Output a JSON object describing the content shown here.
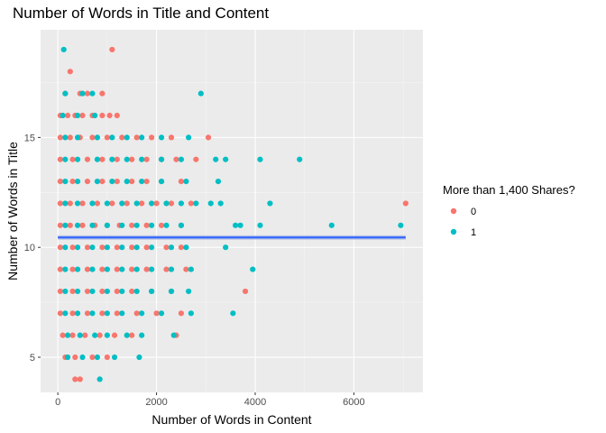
{
  "chart_data": {
    "type": "scatter",
    "title": "Number of Words in Title and Content",
    "xlabel": "Number of Words in Content",
    "ylabel": "Number of Words in Title",
    "xlim": [
      -350,
      7400
    ],
    "ylim": [
      3.4,
      19.9
    ],
    "x_ticks": [
      0,
      2000,
      4000,
      6000
    ],
    "y_ticks": [
      5,
      10,
      15
    ],
    "grid": true,
    "legend": {
      "title": "More than 1,400 Shares?",
      "placement": "right",
      "entries": [
        {
          "label": "0",
          "color": "#F8766D"
        },
        {
          "label": "1",
          "color": "#00BFC4"
        }
      ]
    },
    "trend_line": {
      "color": "#3366FF",
      "x": [
        0,
        7050
      ],
      "y": [
        10.45,
        10.45
      ]
    },
    "series": [
      {
        "name": "0",
        "color": "#F8766D",
        "points": [
          [
            250,
            18
          ],
          [
            1100,
            19
          ],
          [
            150,
            17
          ],
          [
            450,
            17
          ],
          [
            600,
            17
          ],
          [
            900,
            17
          ],
          [
            50,
            16
          ],
          [
            200,
            16
          ],
          [
            350,
            16
          ],
          [
            500,
            16
          ],
          [
            700,
            16
          ],
          [
            900,
            16
          ],
          [
            1050,
            16
          ],
          [
            1200,
            16
          ],
          [
            50,
            15
          ],
          [
            250,
            15
          ],
          [
            450,
            15
          ],
          [
            700,
            15
          ],
          [
            1000,
            15
          ],
          [
            1300,
            15
          ],
          [
            1600,
            15
          ],
          [
            1900,
            15
          ],
          [
            2300,
            15
          ],
          [
            3050,
            15
          ],
          [
            50,
            14
          ],
          [
            300,
            14
          ],
          [
            600,
            14
          ],
          [
            900,
            14
          ],
          [
            1200,
            14
          ],
          [
            1500,
            14
          ],
          [
            1800,
            14
          ],
          [
            2100,
            14
          ],
          [
            2400,
            14
          ],
          [
            2800,
            14
          ],
          [
            50,
            13
          ],
          [
            300,
            13
          ],
          [
            600,
            13
          ],
          [
            900,
            13
          ],
          [
            1200,
            13
          ],
          [
            1500,
            13
          ],
          [
            1800,
            13
          ],
          [
            2100,
            13
          ],
          [
            2500,
            13
          ],
          [
            50,
            12
          ],
          [
            250,
            12
          ],
          [
            500,
            12
          ],
          [
            800,
            12
          ],
          [
            1100,
            12
          ],
          [
            1400,
            12
          ],
          [
            1700,
            12
          ],
          [
            2000,
            12
          ],
          [
            2300,
            12
          ],
          [
            2700,
            12
          ],
          [
            7050,
            12
          ],
          [
            50,
            11
          ],
          [
            250,
            11
          ],
          [
            500,
            11
          ],
          [
            750,
            11
          ],
          [
            1000,
            11
          ],
          [
            1250,
            11
          ],
          [
            1500,
            11
          ],
          [
            1800,
            11
          ],
          [
            2100,
            11
          ],
          [
            2500,
            11
          ],
          [
            50,
            10
          ],
          [
            300,
            10
          ],
          [
            600,
            10
          ],
          [
            900,
            10
          ],
          [
            1200,
            10
          ],
          [
            1500,
            10
          ],
          [
            1800,
            10
          ],
          [
            2200,
            10
          ],
          [
            2500,
            10
          ],
          [
            50,
            9
          ],
          [
            300,
            9
          ],
          [
            600,
            9
          ],
          [
            900,
            9
          ],
          [
            1200,
            9
          ],
          [
            1500,
            9
          ],
          [
            1800,
            9
          ],
          [
            2200,
            9
          ],
          [
            2600,
            9
          ],
          [
            50,
            8
          ],
          [
            300,
            8
          ],
          [
            600,
            8
          ],
          [
            900,
            8
          ],
          [
            1200,
            8
          ],
          [
            1500,
            8
          ],
          [
            1900,
            8
          ],
          [
            2300,
            8
          ],
          [
            3800,
            8
          ],
          [
            50,
            7
          ],
          [
            300,
            7
          ],
          [
            600,
            7
          ],
          [
            900,
            7
          ],
          [
            1200,
            7
          ],
          [
            1600,
            7
          ],
          [
            2000,
            7
          ],
          [
            2500,
            7
          ],
          [
            100,
            6
          ],
          [
            300,
            6
          ],
          [
            550,
            6
          ],
          [
            850,
            6
          ],
          [
            1150,
            6
          ],
          [
            1500,
            6
          ],
          [
            2400,
            6
          ],
          [
            150,
            5
          ],
          [
            350,
            5
          ],
          [
            700,
            5
          ],
          [
            1000,
            5
          ],
          [
            350,
            4
          ],
          [
            450,
            4
          ]
        ]
      },
      {
        "name": "1",
        "color": "#00BFC4",
        "points": [
          [
            120,
            19
          ],
          [
            150,
            17
          ],
          [
            500,
            17
          ],
          [
            700,
            17
          ],
          [
            2900,
            17
          ],
          [
            100,
            16
          ],
          [
            400,
            16
          ],
          [
            750,
            16
          ],
          [
            150,
            15
          ],
          [
            400,
            15
          ],
          [
            800,
            15
          ],
          [
            1100,
            15
          ],
          [
            1400,
            15
          ],
          [
            1700,
            15
          ],
          [
            2100,
            15
          ],
          [
            2650,
            15
          ],
          [
            150,
            14
          ],
          [
            400,
            14
          ],
          [
            800,
            14
          ],
          [
            1100,
            14
          ],
          [
            1400,
            14
          ],
          [
            1700,
            14
          ],
          [
            2100,
            14
          ],
          [
            2500,
            14
          ],
          [
            3200,
            14
          ],
          [
            3400,
            14
          ],
          [
            4100,
            14
          ],
          [
            4900,
            14
          ],
          [
            150,
            13
          ],
          [
            400,
            13
          ],
          [
            800,
            13
          ],
          [
            1100,
            13
          ],
          [
            1400,
            13
          ],
          [
            1700,
            13
          ],
          [
            2100,
            13
          ],
          [
            2600,
            13
          ],
          [
            3250,
            13
          ],
          [
            150,
            12
          ],
          [
            400,
            12
          ],
          [
            700,
            12
          ],
          [
            1000,
            12
          ],
          [
            1300,
            12
          ],
          [
            1600,
            12
          ],
          [
            1900,
            12
          ],
          [
            2200,
            12
          ],
          [
            2500,
            12
          ],
          [
            2800,
            12
          ],
          [
            3100,
            12
          ],
          [
            3300,
            12
          ],
          [
            4300,
            12
          ],
          [
            150,
            11
          ],
          [
            400,
            11
          ],
          [
            700,
            11
          ],
          [
            1000,
            11
          ],
          [
            1300,
            11
          ],
          [
            1600,
            11
          ],
          [
            1900,
            11
          ],
          [
            2200,
            11
          ],
          [
            2500,
            11
          ],
          [
            3600,
            11
          ],
          [
            3700,
            11
          ],
          [
            4100,
            11
          ],
          [
            5550,
            11
          ],
          [
            6950,
            11
          ],
          [
            150,
            10
          ],
          [
            400,
            10
          ],
          [
            700,
            10
          ],
          [
            1000,
            10
          ],
          [
            1300,
            10
          ],
          [
            1600,
            10
          ],
          [
            1900,
            10
          ],
          [
            2300,
            10
          ],
          [
            2600,
            10
          ],
          [
            3400,
            10
          ],
          [
            150,
            9
          ],
          [
            400,
            9
          ],
          [
            700,
            9
          ],
          [
            1000,
            9
          ],
          [
            1300,
            9
          ],
          [
            1600,
            9
          ],
          [
            1900,
            9
          ],
          [
            2300,
            9
          ],
          [
            2700,
            9
          ],
          [
            3950,
            9
          ],
          [
            150,
            8
          ],
          [
            400,
            8
          ],
          [
            700,
            8
          ],
          [
            1000,
            8
          ],
          [
            1300,
            8
          ],
          [
            1600,
            8
          ],
          [
            1900,
            8
          ],
          [
            2300,
            8
          ],
          [
            2650,
            8
          ],
          [
            150,
            7
          ],
          [
            400,
            7
          ],
          [
            700,
            7
          ],
          [
            1000,
            7
          ],
          [
            1300,
            7
          ],
          [
            1700,
            7
          ],
          [
            2100,
            7
          ],
          [
            2700,
            7
          ],
          [
            3550,
            7
          ],
          [
            200,
            6
          ],
          [
            450,
            6
          ],
          [
            750,
            6
          ],
          [
            1000,
            6
          ],
          [
            1400,
            6
          ],
          [
            1700,
            6
          ],
          [
            2350,
            6
          ],
          [
            200,
            5
          ],
          [
            500,
            5
          ],
          [
            800,
            5
          ],
          [
            1150,
            5
          ],
          [
            1650,
            5
          ],
          [
            850,
            4
          ]
        ]
      }
    ]
  }
}
